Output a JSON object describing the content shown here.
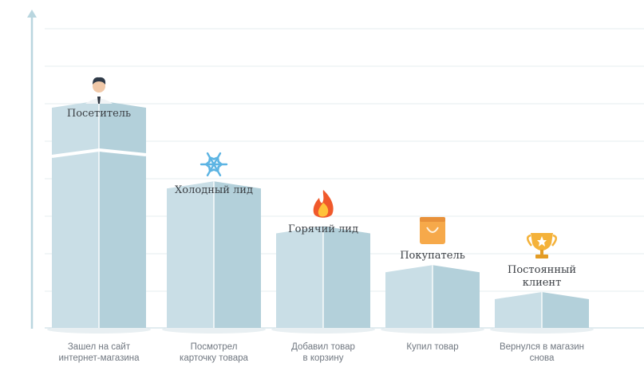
{
  "chart_data": {
    "type": "bar",
    "title": "",
    "xlabel": "",
    "ylabel": "",
    "ylim": [
      0,
      100
    ],
    "grid": true,
    "categories": [
      [
        "Зашел на сайт",
        "интернет-магазина"
      ],
      [
        "Посмотрел",
        "карточку товара"
      ],
      [
        "Добавил товар",
        "в корзину"
      ],
      [
        "Купил товар"
      ],
      [
        "Вернулся в магазин",
        "снова"
      ]
    ],
    "stages": [
      [
        "Посетитель"
      ],
      [
        "Холодный лид"
      ],
      [
        "Горячий лид"
      ],
      [
        "Покупатель"
      ],
      [
        "Постоянный",
        "клиент"
      ]
    ],
    "icons": [
      "person-icon",
      "snowflake-icon",
      "fire-icon",
      "shopping-bag-icon",
      "trophy-icon"
    ],
    "values": [
      76,
      49,
      34,
      21,
      12
    ]
  },
  "colors": {
    "bar_front": "#c9dee6",
    "bar_side": "#b3d0da",
    "grid": "#e4ecef",
    "axis": "#cfe0e6",
    "arrow": "#b9d6df",
    "label": "#707780",
    "title": "#3b3f44"
  }
}
